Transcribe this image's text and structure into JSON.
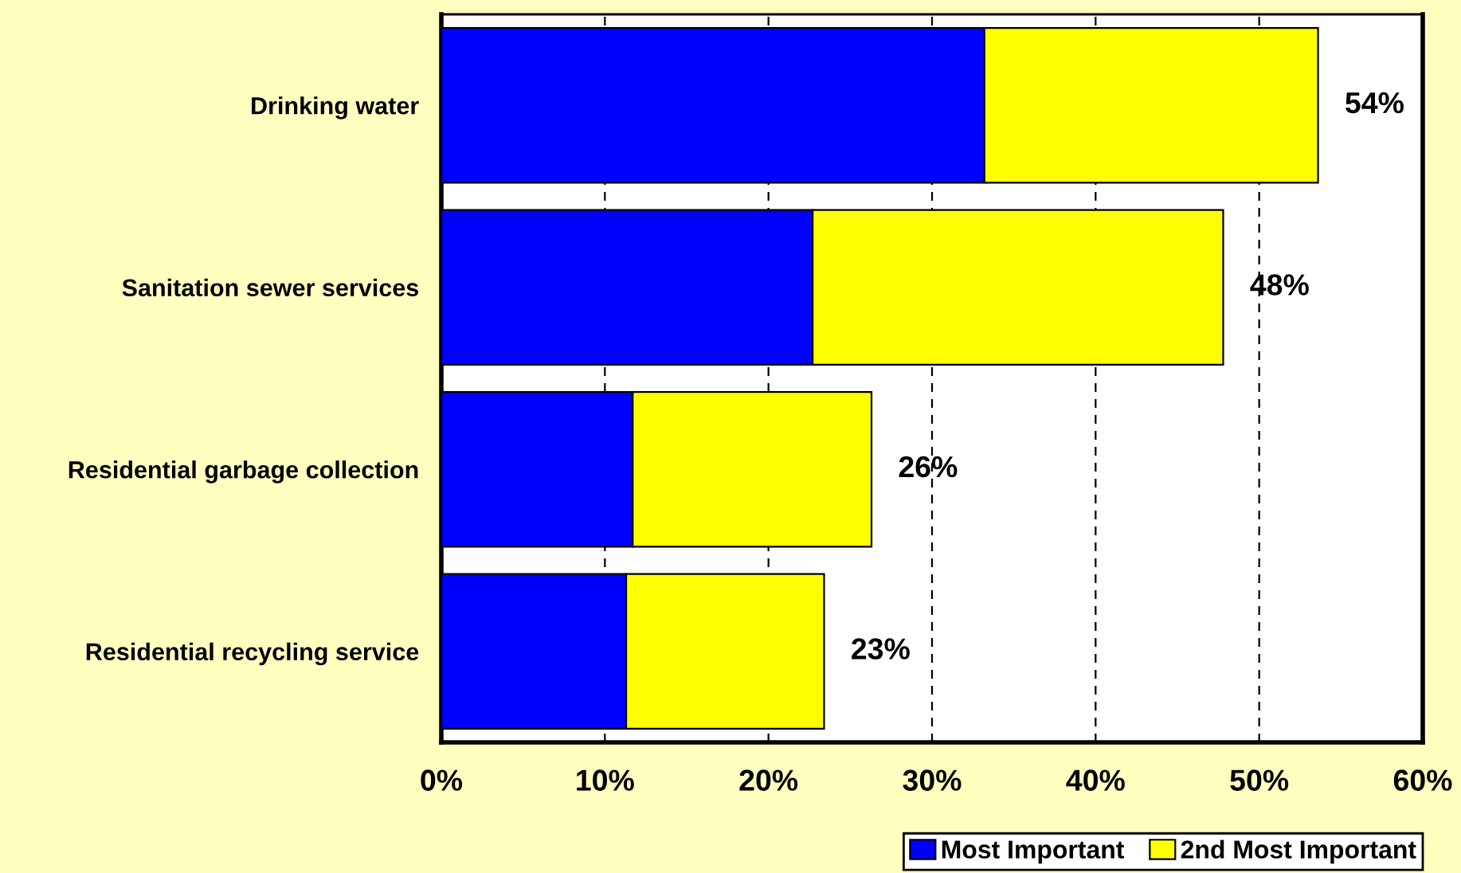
{
  "chart_data": {
    "type": "bar",
    "orientation": "horizontal",
    "stacked": true,
    "categories": [
      "Drinking water",
      "Sanitation sewer services",
      "Residential garbage collection",
      "Residential recycling service"
    ],
    "series": [
      {
        "name": "Most Important",
        "color": "#0000ff",
        "values": [
          33.2,
          22.7,
          11.7,
          11.3
        ]
      },
      {
        "name": "2nd Most Important",
        "color": "#ffff00",
        "values": [
          20.4,
          25.1,
          14.6,
          12.1
        ]
      }
    ],
    "totals": [
      "54%",
      "48%",
      "26%",
      "23%"
    ],
    "xlim": [
      0,
      60
    ],
    "xticks": [
      {
        "value": 0,
        "label": "0%"
      },
      {
        "value": 10,
        "label": "10%"
      },
      {
        "value": 20,
        "label": "20%"
      },
      {
        "value": 30,
        "label": "30%"
      },
      {
        "value": 40,
        "label": "40%"
      },
      {
        "value": 50,
        "label": "50%"
      },
      {
        "value": 60,
        "label": "60%"
      }
    ],
    "grid": "x",
    "legend": "bottom right"
  }
}
